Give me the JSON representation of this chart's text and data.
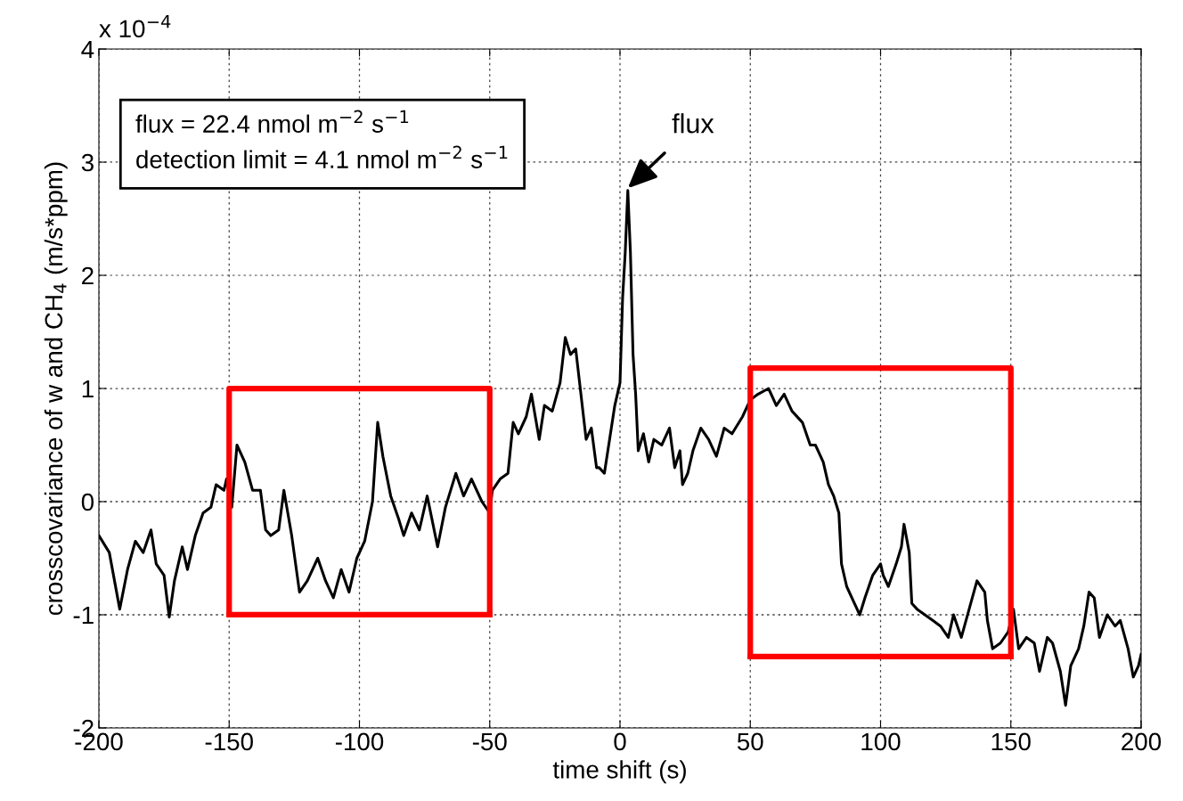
{
  "chart_data": {
    "type": "line",
    "xlabel": "time shift (s)",
    "ylabel": "crosscovariance of w and CH$_{4}$ (m/s*ppm)",
    "xlim": [
      -200,
      200
    ],
    "xticks": [
      -200,
      -150,
      -100,
      -50,
      0,
      50,
      100,
      150,
      200
    ],
    "ylim": [
      -2,
      4
    ],
    "yticks": [
      -2,
      -1,
      0,
      1,
      2,
      3,
      4
    ],
    "grid": true,
    "line_style": "solid",
    "marker": "none",
    "annotations": [
      "x 10$^{−4}$",
      "flux = 22.4 nmol m$^{−2}$ s$^{−1}$",
      "detection limit = 4.1 nmol m$^{−2}$ s$^{−1}$",
      {
        "text": "flux",
        "x": 3,
        "y": 2.77
      }
    ],
    "series": [
      {
        "color": "#000000",
        "x": [
          -200,
          -196,
          -192,
          -189,
          -186,
          -183,
          -180,
          -178,
          -175,
          -173,
          -171,
          -168,
          -166,
          -163,
          -160,
          -157,
          -155,
          -152,
          -151,
          -149,
          -147,
          -144,
          -141,
          -138,
          -136,
          -134,
          -131,
          -129,
          -126,
          -123,
          -120,
          -116,
          -113,
          -110,
          -107,
          -104,
          -101,
          -98,
          -95,
          -93,
          -91,
          -88,
          -85,
          -83,
          -80,
          -77,
          -74,
          -70,
          -67,
          -63,
          -60,
          -57,
          -53,
          -50,
          -49,
          -46,
          -43,
          -41,
          -39,
          -36,
          -34,
          -31,
          -29,
          -26,
          -23,
          -21,
          -19,
          -17,
          -15,
          -13,
          -11,
          -9,
          -8,
          -6,
          -4,
          -2,
          0,
          1,
          2,
          3,
          4,
          5,
          6,
          7,
          9,
          11,
          13,
          16,
          19,
          21,
          23,
          24,
          26,
          28,
          31,
          34,
          37,
          40,
          43,
          47,
          50,
          53,
          57,
          60,
          63,
          66,
          70,
          73,
          75,
          78,
          80,
          82,
          84,
          85,
          87,
          90,
          92,
          94,
          97,
          100,
          101,
          103,
          106,
          108,
          109,
          111,
          112,
          114,
          117,
          120,
          123,
          126,
          128,
          131,
          134,
          137,
          140,
          141,
          143,
          146,
          149,
          151,
          153,
          156,
          159,
          161,
          164,
          166,
          169,
          171,
          173,
          176,
          178,
          180,
          182,
          184,
          187,
          190,
          192,
          195,
          197,
          199,
          200
        ],
        "values": [
          -0.3,
          -0.45,
          -0.95,
          -0.6,
          -0.35,
          -0.45,
          -0.25,
          -0.55,
          -0.65,
          -1.02,
          -0.7,
          -0.4,
          -0.6,
          -0.3,
          -0.1,
          -0.05,
          0.15,
          0.1,
          0.2,
          -0.05,
          0.5,
          0.35,
          0.1,
          0.1,
          -0.25,
          -0.3,
          -0.25,
          0.1,
          -0.3,
          -0.8,
          -0.7,
          -0.5,
          -0.7,
          -0.85,
          -0.6,
          -0.8,
          -0.5,
          -0.35,
          0.0,
          0.7,
          0.4,
          0.05,
          -0.15,
          -0.3,
          -0.1,
          -0.25,
          0.05,
          -0.4,
          -0.05,
          0.25,
          0.05,
          0.2,
          0.0,
          -0.1,
          0.1,
          0.2,
          0.25,
          0.7,
          0.6,
          0.75,
          0.95,
          0.55,
          0.85,
          0.8,
          1.05,
          1.45,
          1.3,
          1.35,
          0.95,
          0.55,
          0.65,
          0.3,
          0.3,
          0.25,
          0.55,
          0.85,
          1.05,
          1.8,
          2.2,
          2.75,
          2.2,
          1.3,
          0.95,
          0.45,
          0.6,
          0.35,
          0.55,
          0.5,
          0.65,
          0.3,
          0.45,
          0.15,
          0.25,
          0.45,
          0.65,
          0.55,
          0.4,
          0.65,
          0.6,
          0.75,
          0.9,
          0.95,
          1.0,
          0.85,
          0.95,
          0.8,
          0.7,
          0.5,
          0.5,
          0.35,
          0.15,
          0.05,
          -0.1,
          -0.55,
          -0.75,
          -0.9,
          -1.0,
          -0.85,
          -0.65,
          -0.55,
          -0.65,
          -0.75,
          -0.55,
          -0.4,
          -0.2,
          -0.45,
          -0.9,
          -0.95,
          -1.0,
          -1.05,
          -1.1,
          -1.2,
          -1.0,
          -1.2,
          -0.95,
          -0.7,
          -0.8,
          -1.05,
          -1.3,
          -1.25,
          -1.15,
          -0.95,
          -1.3,
          -1.2,
          -1.25,
          -1.5,
          -1.2,
          -1.25,
          -1.5,
          -1.8,
          -1.45,
          -1.3,
          -1.1,
          -0.8,
          -0.85,
          -1.2,
          -1.0,
          -1.1,
          -1.05,
          -1.3,
          -1.55,
          -1.45,
          -1.35
        ]
      },
      {
        "color": "#ff0000",
        "x": [
          -150,
          -150,
          -50,
          -50
        ],
        "values": [
          -1,
          1,
          1,
          -1
        ]
      },
      {
        "color": "#ff0000",
        "x": [
          -150,
          -50
        ],
        "values": [
          -1,
          -1
        ]
      },
      {
        "color": "#ff0000",
        "x": [
          50,
          50,
          150,
          150
        ],
        "values": [
          -1.37,
          1.18,
          1.18,
          -1.37
        ]
      },
      {
        "color": "#ff0000",
        "x": [
          50,
          150
        ],
        "values": [
          -1.37,
          -1.37
        ]
      }
    ]
  }
}
